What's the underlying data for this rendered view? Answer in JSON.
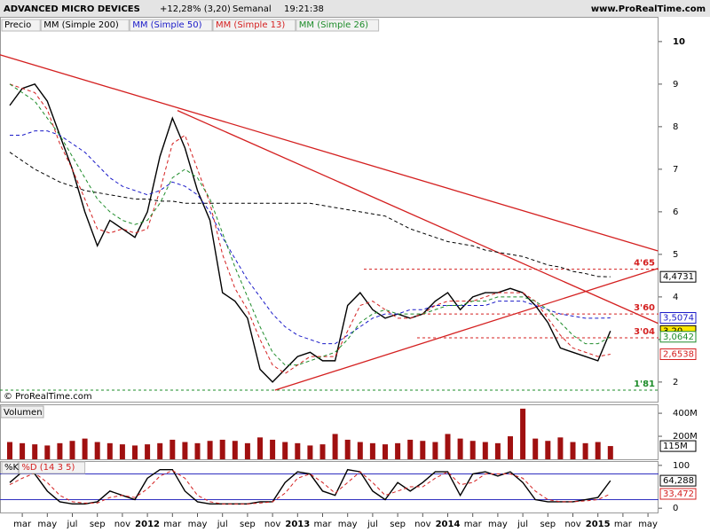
{
  "header": {
    "title": "ADVANCED MICRO DEVICES",
    "change": "+12,28% (3,20)",
    "period": "Semanal",
    "time": "19:21:38",
    "site": "www.ProRealTime.com"
  },
  "chart_data": [
    {
      "type": "line",
      "copyright": "© ProRealTime.com",
      "ylim": [
        1.56,
        10.56
      ],
      "yticks": [
        2,
        3,
        4,
        5,
        6,
        7,
        8,
        9,
        10
      ],
      "series": [
        {
          "name": "Precio",
          "color": "#000000",
          "values": [
            8.5,
            8.9,
            9.0,
            8.6,
            7.8,
            7.0,
            6.0,
            5.2,
            5.8,
            5.6,
            5.4,
            6.0,
            7.3,
            8.2,
            7.5,
            6.5,
            5.8,
            4.1,
            3.9,
            3.5,
            2.3,
            2.0,
            2.3,
            2.6,
            2.7,
            2.5,
            2.5,
            3.8,
            4.1,
            3.7,
            3.5,
            3.6,
            3.5,
            3.6,
            3.9,
            4.1,
            3.7,
            4.0,
            4.1,
            4.1,
            4.2,
            4.1,
            3.8,
            3.4,
            2.8,
            2.7,
            2.6,
            2.5,
            3.2,
            null,
            null,
            null
          ],
          "value_labels": [
            null,
            null,
            null,
            null,
            null,
            null,
            null,
            null,
            null,
            null,
            null,
            null,
            null,
            null,
            null,
            null,
            null,
            null,
            null,
            null,
            null,
            null,
            null,
            null,
            null,
            null,
            null,
            null,
            null,
            null,
            null,
            null,
            null,
            null,
            null,
            null,
            null,
            null,
            null,
            null,
            null,
            null,
            null,
            null,
            null,
            null,
            null,
            null,
            "3,20",
            null,
            null,
            null
          ]
        },
        {
          "name": "MM (Simple 200)",
          "color": "#000000",
          "dashed": true,
          "values": [
            7.4,
            7.2,
            7.0,
            6.85,
            6.7,
            6.6,
            6.5,
            6.45,
            6.4,
            6.35,
            6.3,
            6.3,
            6.25,
            6.25,
            6.2,
            6.2,
            6.2,
            6.2,
            6.2,
            6.2,
            6.2,
            6.2,
            6.2,
            6.2,
            6.2,
            6.15,
            6.1,
            6.05,
            6.0,
            5.95,
            5.9,
            5.75,
            5.6,
            5.5,
            5.4,
            5.3,
            5.25,
            5.2,
            5.1,
            5.05,
            5.0,
            4.95,
            4.85,
            4.75,
            4.7,
            4.6,
            4.55,
            4.48,
            4.4731,
            null,
            null,
            null
          ],
          "value_labels": [
            null,
            null,
            null,
            null,
            null,
            null,
            null,
            null,
            null,
            null,
            null,
            null,
            null,
            null,
            null,
            null,
            null,
            null,
            null,
            null,
            null,
            null,
            null,
            null,
            null,
            null,
            null,
            null,
            null,
            null,
            null,
            null,
            null,
            null,
            null,
            null,
            null,
            null,
            null,
            null,
            null,
            null,
            null,
            null,
            null,
            null,
            null,
            null,
            "4,4731",
            null,
            null,
            null
          ]
        },
        {
          "name": "MM (Simple 50)",
          "color": "#1a1ac8",
          "dashed": true,
          "values": [
            7.8,
            7.8,
            7.9,
            7.9,
            7.8,
            7.6,
            7.4,
            7.1,
            6.8,
            6.6,
            6.5,
            6.4,
            6.5,
            6.7,
            6.6,
            6.4,
            6.0,
            5.4,
            4.9,
            4.4,
            4.0,
            3.6,
            3.3,
            3.1,
            3.0,
            2.9,
            2.9,
            3.1,
            3.3,
            3.5,
            3.6,
            3.6,
            3.7,
            3.7,
            3.8,
            3.8,
            3.8,
            3.8,
            3.8,
            3.9,
            3.9,
            3.9,
            3.8,
            3.7,
            3.6,
            3.55,
            3.5,
            3.5,
            3.5074,
            null,
            null,
            null
          ],
          "value_labels": [
            null,
            null,
            null,
            null,
            null,
            null,
            null,
            null,
            null,
            null,
            null,
            null,
            null,
            null,
            null,
            null,
            null,
            null,
            null,
            null,
            null,
            null,
            null,
            null,
            null,
            null,
            null,
            null,
            null,
            null,
            null,
            null,
            null,
            null,
            null,
            null,
            null,
            null,
            null,
            null,
            null,
            null,
            null,
            null,
            null,
            null,
            null,
            null,
            "3,5074",
            null,
            null,
            null
          ]
        },
        {
          "name": "MM (Simple 13)",
          "color": "#d42020",
          "dashed": true,
          "values": [
            9.0,
            8.9,
            8.8,
            8.4,
            7.6,
            7.0,
            6.3,
            5.6,
            5.5,
            5.6,
            5.5,
            5.6,
            6.5,
            7.6,
            7.8,
            7.0,
            6.2,
            5.0,
            4.2,
            3.7,
            3.0,
            2.4,
            2.2,
            2.4,
            2.6,
            2.6,
            2.6,
            3.2,
            3.8,
            3.9,
            3.7,
            3.5,
            3.5,
            3.6,
            3.8,
            3.9,
            3.9,
            3.9,
            4.0,
            4.1,
            4.1,
            4.1,
            3.9,
            3.5,
            3.1,
            2.8,
            2.7,
            2.6,
            2.6538,
            null,
            null,
            null
          ],
          "value_labels": [
            null,
            null,
            null,
            null,
            null,
            null,
            null,
            null,
            null,
            null,
            null,
            null,
            null,
            null,
            null,
            null,
            null,
            null,
            null,
            null,
            null,
            null,
            null,
            null,
            null,
            null,
            null,
            null,
            null,
            null,
            null,
            null,
            null,
            null,
            null,
            null,
            null,
            null,
            null,
            null,
            null,
            null,
            null,
            null,
            null,
            null,
            null,
            null,
            "2,6538",
            null,
            null,
            null
          ]
        },
        {
          "name": "MM (Simple 26)",
          "color": "#1e8c2a",
          "dashed": true,
          "values": [
            9.0,
            8.8,
            8.6,
            8.2,
            7.8,
            7.3,
            6.8,
            6.3,
            6.0,
            5.8,
            5.7,
            5.8,
            6.2,
            6.8,
            7.0,
            6.8,
            6.3,
            5.5,
            4.7,
            4.0,
            3.3,
            2.7,
            2.4,
            2.4,
            2.5,
            2.6,
            2.7,
            3.0,
            3.4,
            3.6,
            3.7,
            3.6,
            3.6,
            3.6,
            3.7,
            3.8,
            3.8,
            3.9,
            3.9,
            4.0,
            4.0,
            4.0,
            3.9,
            3.7,
            3.4,
            3.1,
            2.9,
            2.9,
            3.0642,
            null,
            null,
            null
          ],
          "value_labels": [
            null,
            null,
            null,
            null,
            null,
            null,
            null,
            null,
            null,
            null,
            null,
            null,
            null,
            null,
            null,
            null,
            null,
            null,
            null,
            null,
            null,
            null,
            null,
            null,
            null,
            null,
            null,
            null,
            null,
            null,
            null,
            null,
            null,
            null,
            null,
            null,
            null,
            null,
            null,
            null,
            null,
            null,
            null,
            null,
            null,
            null,
            null,
            null,
            "3,0642",
            null,
            null,
            null
          ]
        }
      ],
      "levels": [
        {
          "value": 4.65,
          "label": "4'65",
          "color": "#d42020"
        },
        {
          "value": 3.6,
          "label": "3'60",
          "color": "#d42020"
        },
        {
          "value": 3.04,
          "label": "3'04",
          "color": "#d42020"
        },
        {
          "value": 1.81,
          "label": "1'81",
          "color": "#1e8c2a"
        }
      ],
      "trendlines": [
        {
          "x": [
            -0.8,
            51.8
          ],
          "y": [
            9.69,
            5.08
          ]
        },
        {
          "x": [
            13.4,
            51.8
          ],
          "y": [
            8.38,
            3.38
          ]
        },
        {
          "x": [
            21.2,
            51.8
          ],
          "y": [
            1.81,
            4.67
          ]
        }
      ]
    },
    {
      "type": "bar",
      "title": "Volumen",
      "color": "#a01010",
      "ylim": [
        0,
        470
      ],
      "yticks": [
        {
          "value": 400,
          "label": "400M"
        },
        {
          "value": 200,
          "label": "200M"
        }
      ],
      "values": [
        150,
        140,
        130,
        120,
        140,
        160,
        180,
        150,
        140,
        130,
        120,
        130,
        140,
        170,
        150,
        140,
        160,
        170,
        160,
        140,
        190,
        170,
        150,
        140,
        120,
        130,
        220,
        170,
        150,
        140,
        130,
        140,
        170,
        160,
        150,
        220,
        180,
        160,
        150,
        140,
        200,
        440,
        180,
        160,
        190,
        150,
        140,
        150,
        115,
        null,
        null,
        null
      ],
      "value_labels": [
        null,
        null,
        null,
        null,
        null,
        null,
        null,
        null,
        null,
        null,
        null,
        null,
        null,
        null,
        null,
        null,
        null,
        null,
        null,
        null,
        null,
        null,
        null,
        null,
        null,
        null,
        null,
        null,
        null,
        null,
        null,
        null,
        null,
        null,
        null,
        null,
        null,
        null,
        null,
        null,
        null,
        null,
        null,
        null,
        null,
        null,
        null,
        null,
        "115M",
        null,
        null,
        null
      ]
    },
    {
      "type": "line",
      "ylim": [
        -10,
        108
      ],
      "yticks": [
        0,
        100
      ],
      "levels": [
        80,
        20
      ],
      "categories": [
        null,
        "mar",
        null,
        "may",
        null,
        "jul",
        null,
        "sep",
        null,
        "nov",
        null,
        "2012",
        null,
        "mar",
        null,
        "may",
        null,
        "jul",
        null,
        "sep",
        null,
        "nov",
        null,
        "2013",
        null,
        "mar",
        null,
        "may",
        null,
        "jul",
        null,
        "sep",
        null,
        "nov",
        null,
        "2014",
        null,
        "mar",
        null,
        "may",
        null,
        "jul",
        null,
        "sep",
        null,
        "nov",
        null,
        "2015",
        null,
        "mar",
        null,
        "may"
      ],
      "series": [
        {
          "name": "%K",
          "color": "#000000",
          "values": [
            60,
            85,
            80,
            40,
            15,
            10,
            10,
            15,
            40,
            30,
            20,
            70,
            90,
            90,
            40,
            15,
            10,
            10,
            10,
            10,
            15,
            15,
            60,
            85,
            80,
            40,
            30,
            90,
            85,
            40,
            20,
            60,
            40,
            60,
            85,
            85,
            30,
            80,
            85,
            75,
            85,
            60,
            20,
            15,
            15,
            15,
            20,
            25,
            64.288,
            null,
            null,
            null
          ],
          "value_labels": [
            null,
            null,
            null,
            null,
            null,
            null,
            null,
            null,
            null,
            null,
            null,
            null,
            null,
            null,
            null,
            null,
            null,
            null,
            null,
            null,
            null,
            null,
            null,
            null,
            null,
            null,
            null,
            null,
            null,
            null,
            null,
            null,
            null,
            null,
            null,
            null,
            null,
            null,
            null,
            null,
            null,
            null,
            null,
            null,
            null,
            null,
            null,
            null,
            "64,288",
            null,
            null,
            null
          ]
        },
        {
          "name": "%D (14 3 5)",
          "color": "#d42020",
          "dashed": true,
          "values": [
            55,
            70,
            82,
            60,
            30,
            15,
            12,
            12,
            25,
            30,
            25,
            45,
            75,
            88,
            70,
            30,
            15,
            10,
            10,
            10,
            12,
            15,
            35,
            70,
            80,
            60,
            35,
            60,
            85,
            60,
            30,
            40,
            50,
            50,
            70,
            85,
            55,
            60,
            80,
            80,
            80,
            70,
            40,
            20,
            15,
            15,
            17,
            20,
            33.472,
            null,
            null,
            null
          ],
          "value_labels": [
            null,
            null,
            null,
            null,
            null,
            null,
            null,
            null,
            null,
            null,
            null,
            null,
            null,
            null,
            null,
            null,
            null,
            null,
            null,
            null,
            null,
            null,
            null,
            null,
            null,
            null,
            null,
            null,
            null,
            null,
            null,
            null,
            null,
            null,
            null,
            null,
            null,
            null,
            null,
            null,
            null,
            null,
            null,
            null,
            null,
            null,
            null,
            null,
            "33,472",
            null,
            null,
            null
          ]
        }
      ]
    }
  ]
}
